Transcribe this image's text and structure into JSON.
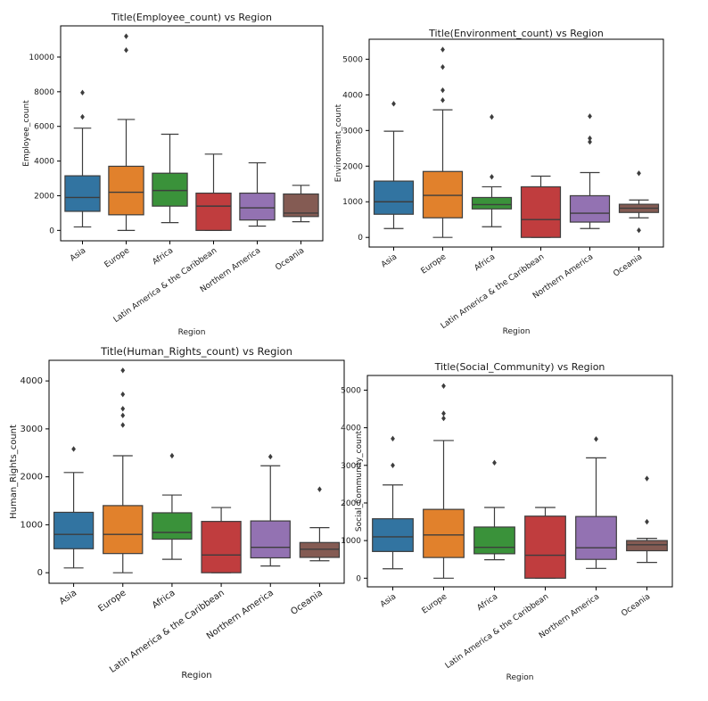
{
  "chart_data": [
    {
      "type": "box",
      "title": "Title(Employee_count) vs Region",
      "xlabel": "Region",
      "ylabel": "Employee_count",
      "ylim": [
        -600,
        11800
      ],
      "yticks": [
        0,
        2000,
        4000,
        6000,
        8000,
        10000
      ],
      "categories": [
        "Asia",
        "Europe",
        "Africa",
        "Latin America & the Caribbean",
        "Northern America",
        "Oceania"
      ],
      "boxes": [
        {
          "min": 200,
          "q1": 1100,
          "median": 1900,
          "q3": 3150,
          "max": 5900,
          "outliers": [
            6550,
            7950
          ]
        },
        {
          "min": 0,
          "q1": 900,
          "median": 2200,
          "q3": 3700,
          "max": 6400,
          "outliers": [
            10400,
            11200
          ]
        },
        {
          "min": 450,
          "q1": 1400,
          "median": 2300,
          "q3": 3300,
          "max": 5550,
          "outliers": []
        },
        {
          "min": 0,
          "q1": 0,
          "median": 1400,
          "q3": 2150,
          "max": 4400,
          "outliers": []
        },
        {
          "min": 250,
          "q1": 600,
          "median": 1300,
          "q3": 2150,
          "max": 3900,
          "outliers": []
        },
        {
          "min": 500,
          "q1": 800,
          "median": 1000,
          "q3": 2100,
          "max": 2600,
          "outliers": []
        }
      ]
    },
    {
      "type": "box",
      "title": "Title(Environment_count) vs Region",
      "xlabel": "Region",
      "ylabel": "Environment_count",
      "ylim": [
        -270,
        5560
      ],
      "yticks": [
        0,
        1000,
        2000,
        3000,
        4000,
        5000
      ],
      "categories": [
        "Asia",
        "Europe",
        "Africa",
        "Latin America & the Caribbean",
        "Northern America",
        "Oceania"
      ],
      "boxes": [
        {
          "min": 250,
          "q1": 650,
          "median": 1000,
          "q3": 1580,
          "max": 2980,
          "outliers": [
            3750
          ]
        },
        {
          "min": 0,
          "q1": 550,
          "median": 1180,
          "q3": 1850,
          "max": 3580,
          "outliers": [
            3850,
            4130,
            4780,
            5270
          ]
        },
        {
          "min": 300,
          "q1": 800,
          "median": 920,
          "q3": 1120,
          "max": 1420,
          "outliers": [
            1700,
            3380
          ]
        },
        {
          "min": 0,
          "q1": 0,
          "median": 500,
          "q3": 1420,
          "max": 1720,
          "outliers": []
        },
        {
          "min": 250,
          "q1": 430,
          "median": 680,
          "q3": 1170,
          "max": 1820,
          "outliers": [
            2680,
            2780,
            3400
          ]
        },
        {
          "min": 550,
          "q1": 700,
          "median": 820,
          "q3": 930,
          "max": 1050,
          "outliers": [
            200,
            1800
          ]
        }
      ]
    },
    {
      "type": "box",
      "title": "Title(Human_Rights_count) vs Region",
      "xlabel": "Region",
      "ylabel": "Human_Rights_count",
      "ylim": [
        -220,
        4430
      ],
      "yticks": [
        0,
        1000,
        2000,
        3000,
        4000
      ],
      "categories": [
        "Asia",
        "Europe",
        "Africa",
        "Latin America & the Caribbean",
        "Northern America",
        "Oceania"
      ],
      "boxes": [
        {
          "min": 100,
          "q1": 500,
          "median": 800,
          "q3": 1260,
          "max": 2090,
          "outliers": [
            2580
          ]
        },
        {
          "min": 0,
          "q1": 400,
          "median": 800,
          "q3": 1400,
          "max": 2440,
          "outliers": [
            3080,
            3280,
            3420,
            3720,
            4220
          ]
        },
        {
          "min": 280,
          "q1": 700,
          "median": 840,
          "q3": 1250,
          "max": 1620,
          "outliers": [
            2440
          ]
        },
        {
          "min": 0,
          "q1": 0,
          "median": 370,
          "q3": 1070,
          "max": 1360,
          "outliers": []
        },
        {
          "min": 140,
          "q1": 310,
          "median": 530,
          "q3": 1080,
          "max": 2230,
          "outliers": [
            2420
          ]
        },
        {
          "min": 250,
          "q1": 320,
          "median": 490,
          "q3": 630,
          "max": 940,
          "outliers": [
            1740
          ]
        }
      ]
    },
    {
      "type": "box",
      "title": "Title(Social_Community) vs Region",
      "xlabel": "Region",
      "ylabel": "Social_Community_count",
      "ylim": [
        -230,
        5390
      ],
      "yticks": [
        0,
        1000,
        2000,
        3000,
        4000,
        5000
      ],
      "categories": [
        "Asia",
        "Europe",
        "Africa",
        "Latin America & the Caribbean",
        "Northern America",
        "Oceania"
      ],
      "boxes": [
        {
          "min": 250,
          "q1": 710,
          "median": 1100,
          "q3": 1580,
          "max": 2480,
          "outliers": [
            3000,
            3710
          ]
        },
        {
          "min": 0,
          "q1": 550,
          "median": 1150,
          "q3": 1830,
          "max": 3660,
          "outliers": [
            4250,
            4380,
            5110
          ]
        },
        {
          "min": 490,
          "q1": 650,
          "median": 820,
          "q3": 1360,
          "max": 1880,
          "outliers": [
            3070
          ]
        },
        {
          "min": 0,
          "q1": 0,
          "median": 610,
          "q3": 1650,
          "max": 1880,
          "outliers": []
        },
        {
          "min": 260,
          "q1": 500,
          "median": 810,
          "q3": 1640,
          "max": 3200,
          "outliers": [
            3700
          ]
        },
        {
          "min": 420,
          "q1": 730,
          "median": 890,
          "q3": 1000,
          "max": 1060,
          "outliers": [
            1500,
            2650
          ]
        }
      ]
    }
  ],
  "colors": {
    "palette": [
      "#3274a1",
      "#e1812c",
      "#3a923a",
      "#c03d3e",
      "#9372b2",
      "#845b53"
    ],
    "line": "#3d3d3d",
    "axis": "#000000"
  }
}
